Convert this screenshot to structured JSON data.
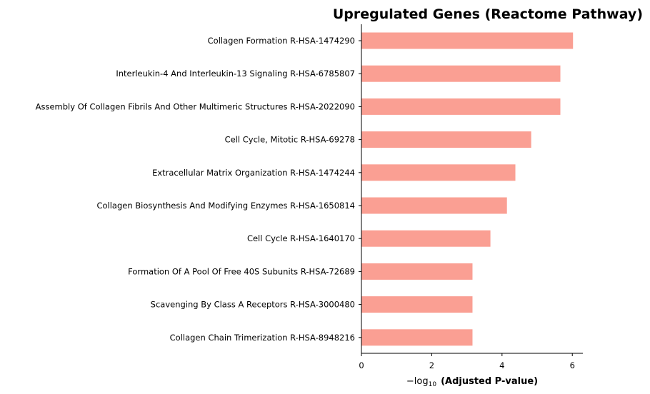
{
  "chart_data": {
    "type": "bar",
    "orientation": "horizontal",
    "title": "Upregulated Genes (Reactome Pathway)",
    "xlabel": {
      "prefix": "−log",
      "subscript": "10",
      "main": "(Adjusted P-value)"
    },
    "ylabel": "",
    "xlim": [
      0,
      6.3
    ],
    "xticks": [
      0,
      2,
      4,
      6
    ],
    "grid": false,
    "bar_color": "#fa9f93",
    "categories": [
      "Collagen Formation R-HSA-1474290",
      "Interleukin-4 And Interleukin-13 Signaling R-HSA-6785807",
      "Assembly Of Collagen Fibrils And Other Multimeric Structures R-HSA-2022090",
      "Cell Cycle, Mitotic R-HSA-69278",
      "Extracellular Matrix Organization R-HSA-1474244",
      "Collagen Biosynthesis And Modifying Enzymes R-HSA-1650814",
      "Cell Cycle R-HSA-1640170",
      "Formation Of A Pool Of Free 40S Subunits R-HSA-72689",
      "Scavenging By Class A Receptors R-HSA-3000480",
      "Collagen Chain Trimerization R-HSA-8948216"
    ],
    "values": [
      6.02,
      5.66,
      5.66,
      4.83,
      4.38,
      4.14,
      3.67,
      3.16,
      3.16,
      3.16
    ]
  }
}
